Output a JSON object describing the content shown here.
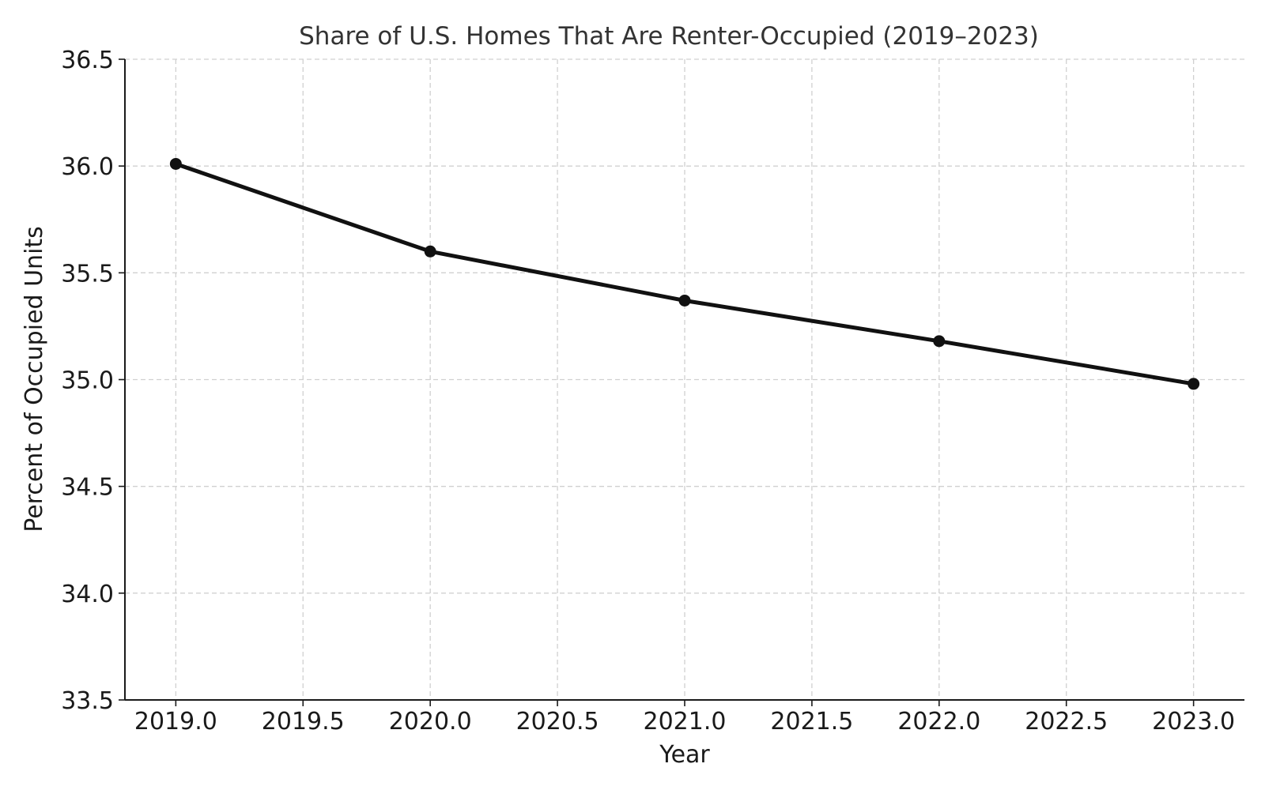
{
  "chart_data": {
    "type": "line",
    "title": "Share of U.S. Homes That Are Renter-Occupied (2019–2023)",
    "xlabel": "Year",
    "ylabel": "Percent of Occupied Units",
    "x": [
      2019,
      2020,
      2021,
      2022,
      2023
    ],
    "series": [
      {
        "values": [
          36.01,
          35.6,
          35.37,
          35.18,
          34.98
        ],
        "color": "#111111"
      }
    ],
    "xlim": [
      2018.8,
      2023.2
    ],
    "ylim": [
      33.5,
      36.5
    ],
    "x_ticks": [
      2019.0,
      2019.5,
      2020.0,
      2020.5,
      2021.0,
      2021.5,
      2022.0,
      2022.5,
      2023.0
    ],
    "x_tick_labels": [
      "2019.0",
      "2019.5",
      "2020.0",
      "2020.5",
      "2021.0",
      "2021.5",
      "2022.0",
      "2022.5",
      "2023.0"
    ],
    "y_ticks": [
      33.5,
      34.0,
      34.5,
      35.0,
      35.5,
      36.0,
      36.5
    ],
    "y_tick_labels": [
      "33.5",
      "34.0",
      "34.5",
      "35.0",
      "35.5",
      "36.0",
      "36.5"
    ],
    "grid": true,
    "grid_style": "dashed",
    "legend": false
  }
}
